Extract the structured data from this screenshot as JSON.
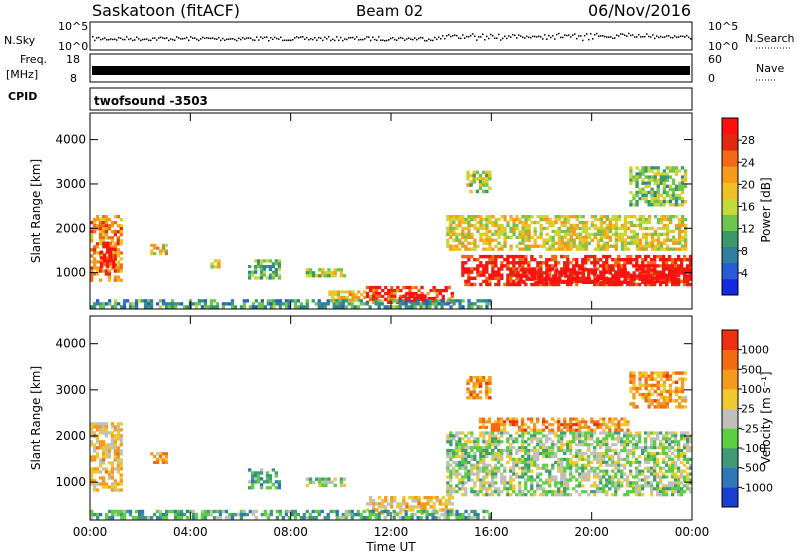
{
  "header": {
    "title": "Saskatoon (fitACF)",
    "beam": "Beam 02",
    "date": "06/Nov/2016"
  },
  "strips": {
    "nsky_label": "N.Sky",
    "nsky_ticks": [
      "10^5",
      "10^0"
    ],
    "nsearch_label": "N.Search",
    "freq_label_line1": "Freq.",
    "freq_label_line2": "[MHz]",
    "freq_ticks": [
      "18",
      "8"
    ],
    "nave_label": "Nave",
    "nave_ticks": [
      "60",
      "0"
    ],
    "cpid_label": "CPID",
    "cpid_value": "twofsound -3503"
  },
  "chart_data": [
    {
      "type": "heatmap",
      "name": "power",
      "ylabel": "Slant Range [km]",
      "xlabel": "",
      "y_ticks": [
        "1000",
        "2000",
        "3000",
        "4000"
      ],
      "x_ticks": [
        "00:00",
        "04:00",
        "08:00",
        "12:00",
        "16:00",
        "20:00",
        "00:00"
      ],
      "ylim": [
        180,
        4600
      ],
      "xlim": [
        0,
        24
      ],
      "colorbar": {
        "label": "Power [dB]",
        "ticks": [
          "4",
          "8",
          "12",
          "16",
          "20",
          "24",
          "28"
        ],
        "colors": [
          "#1428e0",
          "#2a5bd6",
          "#2f7fa0",
          "#3c9a6a",
          "#6fc44e",
          "#c4d93a",
          "#f2c020",
          "#f59a1a",
          "#f26a14",
          "#e02a10",
          "#ff1010"
        ]
      },
      "regions": [
        {
          "t0": 0.0,
          "t1": 1.3,
          "r0": 800,
          "r1": 2300,
          "level": 0.7
        },
        {
          "t0": 0.4,
          "t1": 1.0,
          "r0": 1100,
          "r1": 1700,
          "level": 0.95
        },
        {
          "t0": 2.4,
          "t1": 3.1,
          "r0": 1400,
          "r1": 1650,
          "level": 0.6
        },
        {
          "t0": 4.8,
          "t1": 5.2,
          "r0": 1100,
          "r1": 1300,
          "level": 0.55
        },
        {
          "t0": 6.3,
          "t1": 7.6,
          "r0": 850,
          "r1": 1300,
          "level": 0.35
        },
        {
          "t0": 8.6,
          "t1": 10.2,
          "r0": 900,
          "r1": 1100,
          "level": 0.5
        },
        {
          "t0": 9.5,
          "t1": 11.0,
          "r0": 350,
          "r1": 600,
          "level": 0.6
        },
        {
          "t0": 11.0,
          "t1": 14.5,
          "r0": 300,
          "r1": 700,
          "level": 0.85
        },
        {
          "t0": 12.3,
          "t1": 13.8,
          "r0": 320,
          "r1": 520,
          "level": 1.0
        },
        {
          "t0": 14.2,
          "t1": 23.8,
          "r0": 1500,
          "r1": 2300,
          "level": 0.55
        },
        {
          "t0": 14.8,
          "t1": 24.0,
          "r0": 700,
          "r1": 1400,
          "level": 0.9
        },
        {
          "t0": 17.0,
          "t1": 24.0,
          "r0": 750,
          "r1": 1100,
          "level": 1.0
        },
        {
          "t0": 15.0,
          "t1": 16.0,
          "r0": 2800,
          "r1": 3300,
          "level": 0.5
        },
        {
          "t0": 21.5,
          "t1": 23.8,
          "r0": 2500,
          "r1": 3400,
          "level": 0.4
        },
        {
          "t0": 0.0,
          "t1": 16.0,
          "r0": 200,
          "r1": 400,
          "level": 0.3
        }
      ]
    },
    {
      "type": "heatmap",
      "name": "velocity",
      "ylabel": "Slant Range [km]",
      "xlabel": "Time UT",
      "y_ticks": [
        "1000",
        "2000",
        "3000",
        "4000"
      ],
      "x_ticks": [
        "00:00",
        "04:00",
        "08:00",
        "12:00",
        "16:00",
        "20:00",
        "00:00"
      ],
      "ylim": [
        180,
        4600
      ],
      "xlim": [
        0,
        24
      ],
      "colorbar": {
        "label": "Velocity [m s⁻¹]",
        "ticks": [
          "1000",
          "500",
          "100",
          "25",
          "-25",
          "-100",
          "-500",
          "-1000"
        ],
        "colors": [
          "#1a3fd0",
          "#2f78b8",
          "#3f9a78",
          "#5ccf40",
          "#c0c0b8",
          "#f0c830",
          "#f59a1a",
          "#f26a14",
          "#ee3010"
        ]
      },
      "regions": [
        {
          "t0": 0.0,
          "t1": 1.3,
          "r0": 800,
          "r1": 2300,
          "level": 0.62
        },
        {
          "t0": 2.4,
          "t1": 3.1,
          "r0": 1400,
          "r1": 1650,
          "level": 0.7
        },
        {
          "t0": 6.3,
          "t1": 7.6,
          "r0": 850,
          "r1": 1300,
          "level": 0.3
        },
        {
          "t0": 8.6,
          "t1": 10.2,
          "r0": 900,
          "r1": 1100,
          "level": 0.45
        },
        {
          "t0": 11.0,
          "t1": 14.5,
          "r0": 300,
          "r1": 700,
          "level": 0.62
        },
        {
          "t0": 14.2,
          "t1": 24.0,
          "r0": 700,
          "r1": 2100,
          "level": 0.45
        },
        {
          "t0": 15.5,
          "t1": 21.5,
          "r0": 2100,
          "r1": 2400,
          "level": 0.75
        },
        {
          "t0": 15.0,
          "t1": 16.0,
          "r0": 2800,
          "r1": 3300,
          "level": 0.75
        },
        {
          "t0": 21.5,
          "t1": 23.8,
          "r0": 2600,
          "r1": 3400,
          "level": 0.72
        },
        {
          "t0": 0.0,
          "t1": 16.0,
          "r0": 200,
          "r1": 400,
          "level": 0.35
        }
      ]
    }
  ]
}
